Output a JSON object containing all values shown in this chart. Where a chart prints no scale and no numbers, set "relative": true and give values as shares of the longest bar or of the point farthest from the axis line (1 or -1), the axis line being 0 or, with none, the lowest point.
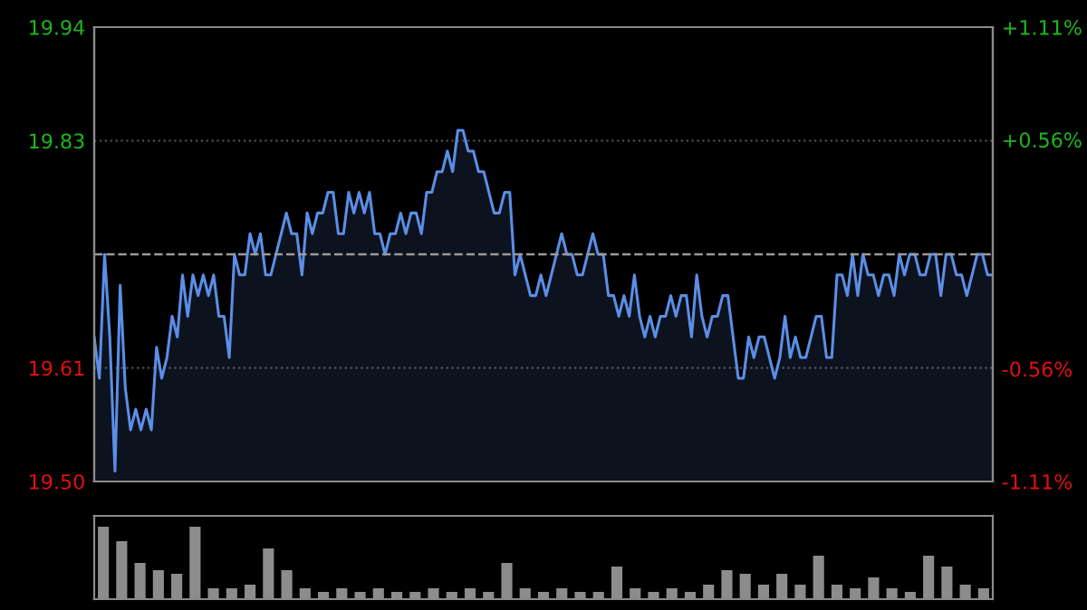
{
  "chart_data": [
    {
      "type": "area",
      "categories": [
        null,
        null,
        null,
        null,
        null,
        null,
        null,
        null,
        null,
        null,
        null,
        null,
        null,
        null,
        null,
        null,
        null,
        null,
        null,
        null,
        null,
        null,
        null,
        null,
        null,
        null,
        null,
        null,
        null,
        null,
        null,
        null,
        null,
        null,
        null,
        null,
        null,
        null,
        null,
        null,
        null,
        null,
        null,
        null,
        null,
        null,
        null,
        null,
        null,
        null,
        null,
        null,
        null,
        null,
        null,
        null,
        null,
        null,
        null,
        null,
        null,
        null,
        null,
        null,
        null,
        null,
        null,
        null,
        null,
        null,
        null,
        null,
        null,
        null,
        null,
        null,
        null,
        null,
        null,
        null,
        null,
        null,
        null,
        null,
        null,
        null,
        null,
        null,
        null,
        null,
        null,
        null,
        null,
        null,
        null,
        null,
        null,
        null,
        null,
        null,
        null,
        null,
        null,
        null,
        null,
        null,
        null,
        null,
        null,
        null,
        null,
        null,
        null,
        null,
        null,
        null,
        null,
        null,
        null,
        null,
        null,
        null,
        null,
        null,
        null,
        null,
        null,
        null,
        null,
        null,
        null,
        null,
        null,
        null,
        null,
        null,
        null,
        null,
        null,
        null,
        null,
        null,
        null,
        null,
        null,
        null,
        null,
        null,
        null,
        null,
        null,
        null,
        null,
        null,
        null,
        null,
        null,
        null,
        null,
        null,
        null,
        null,
        null,
        null,
        null,
        null,
        null,
        null,
        null,
        null,
        null,
        null,
        null,
        null
      ],
      "series": [
        {
          "color": "#5b8ee6",
          "values": [
            19.64,
            19.6,
            19.72,
            19.64,
            19.51,
            19.69,
            19.59,
            19.55,
            19.57,
            19.55,
            19.57,
            19.55,
            19.63,
            19.6,
            19.62,
            19.66,
            19.64,
            19.7,
            19.66,
            19.7,
            19.68,
            19.7,
            19.68,
            19.7,
            19.66,
            19.66,
            19.62,
            19.72,
            19.7,
            19.7,
            19.74,
            19.72,
            19.74,
            19.7,
            19.7,
            19.72,
            19.74,
            19.76,
            19.74,
            19.74,
            19.7,
            19.76,
            19.74,
            19.76,
            19.76,
            19.78,
            19.78,
            19.74,
            19.74,
            19.78,
            19.76,
            19.78,
            19.76,
            19.78,
            19.74,
            19.74,
            19.72,
            19.74,
            19.74,
            19.76,
            19.74,
            19.76,
            19.76,
            19.74,
            19.78,
            19.78,
            19.8,
            19.8,
            19.82,
            19.8,
            19.84,
            19.84,
            19.82,
            19.82,
            19.8,
            19.8,
            19.78,
            19.76,
            19.76,
            19.78,
            19.78,
            19.7,
            19.72,
            19.7,
            19.68,
            19.68,
            19.7,
            19.68,
            19.7,
            19.72,
            19.74,
            19.72,
            19.72,
            19.7,
            19.7,
            19.72,
            19.74,
            19.72,
            19.72,
            19.68,
            19.68,
            19.66,
            19.68,
            19.66,
            19.7,
            19.66,
            19.64,
            19.66,
            19.64,
            19.66,
            19.66,
            19.68,
            19.66,
            19.68,
            19.68,
            19.64,
            19.7,
            19.66,
            19.64,
            19.66,
            19.66,
            19.68,
            19.68,
            19.64,
            19.6,
            19.6,
            19.64,
            19.62,
            19.64,
            19.64,
            19.62,
            19.6,
            19.62,
            19.66,
            19.62,
            19.64,
            19.62,
            19.62,
            19.64,
            19.66,
            19.66,
            19.62,
            19.62,
            19.7,
            19.7,
            19.68,
            19.72,
            19.68,
            19.72,
            19.7,
            19.7,
            19.68,
            19.7,
            19.7,
            19.68,
            19.72,
            19.7,
            19.72,
            19.72,
            19.7,
            19.7,
            19.72,
            19.72,
            19.68,
            19.72,
            19.72,
            19.7,
            19.7,
            19.68,
            19.7,
            19.72,
            19.72,
            19.7,
            19.7
          ]
        }
      ],
      "ylim": [
        19.5,
        19.94
      ],
      "yticks": [
        {
          "value": 19.5,
          "label": "19.50"
        },
        19.61,
        19.83,
        19.94
      ],
      "y2lim": [
        -1.11,
        1.11
      ],
      "y2ticks": [
        {
          "value": -1.11,
          "label": "-1.11%"
        },
        {
          "value": -0.56,
          "label": "-0.56%"
        },
        {
          "value": 0.56,
          "label": "+0.56%"
        },
        {
          "value": 1.11,
          "label": "+1.11%"
        }
      ],
      "ref_lines": [
        {
          "axis": "y",
          "value": 19.72,
          "line_style": "dashed",
          "color": "#9a9a9a"
        }
      ],
      "grid": "y"
    },
    {
      "type": "bar",
      "relative": true,
      "color": "#8c8c8c",
      "categories": [
        null,
        null,
        null,
        null,
        null,
        null,
        null,
        null,
        null,
        null,
        null,
        null,
        null,
        null,
        null,
        null,
        null,
        null,
        null,
        null,
        null,
        null,
        null,
        null,
        null,
        null,
        null,
        null,
        null,
        null,
        null,
        null,
        null,
        null,
        null,
        null,
        null,
        null,
        null,
        null,
        null,
        null,
        null,
        null,
        null,
        null,
        null,
        null,
        null
      ],
      "values": [
        1.0,
        0.8,
        0.5,
        0.4,
        0.35,
        1.0,
        0.15,
        0.15,
        0.2,
        0.7,
        0.4,
        0.15,
        0.1,
        0.15,
        0.1,
        0.15,
        0.1,
        0.1,
        0.15,
        0.1,
        0.15,
        0.1,
        0.5,
        0.15,
        0.1,
        0.15,
        0.1,
        0.1,
        0.45,
        0.15,
        0.1,
        0.15,
        0.1,
        0.2,
        0.4,
        0.35,
        0.2,
        0.35,
        0.2,
        0.6,
        0.2,
        0.15,
        0.3,
        0.15,
        0.1,
        0.6,
        0.45,
        0.2,
        0.15
      ]
    }
  ]
}
